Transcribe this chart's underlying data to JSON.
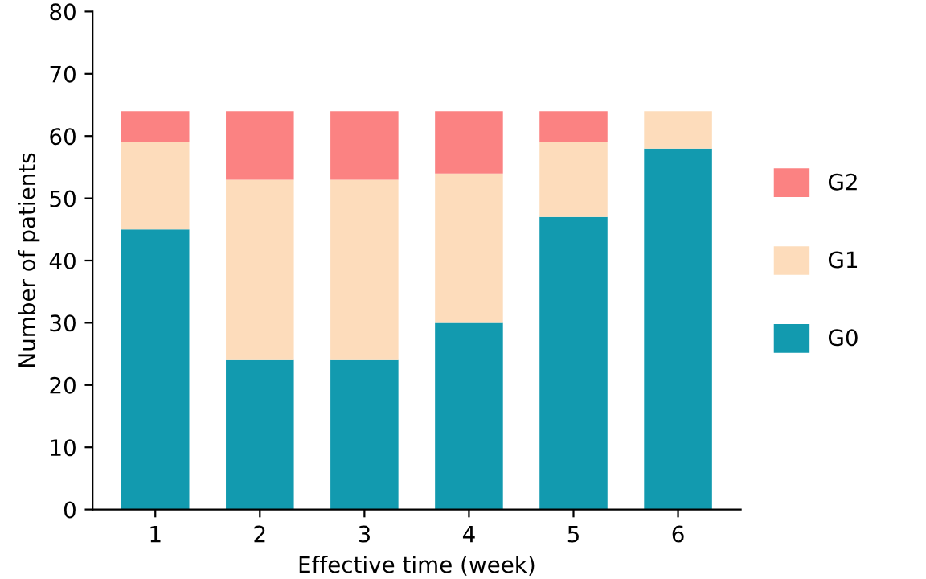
{
  "chart_data": {
    "type": "bar",
    "stacked": true,
    "xlabel": "Effective time (week)",
    "ylabel": "Number of patients",
    "categories": [
      "1",
      "2",
      "3",
      "4",
      "5",
      "6"
    ],
    "series": [
      {
        "name": "G0",
        "color": "#129aaf",
        "values": [
          45,
          24,
          24,
          30,
          47,
          58
        ]
      },
      {
        "name": "G1",
        "color": "#fddcbb",
        "values": [
          14,
          29,
          29,
          24,
          12,
          6
        ]
      },
      {
        "name": "G2",
        "color": "#fb8282",
        "values": [
          5,
          11,
          11,
          10,
          5,
          0
        ]
      }
    ],
    "ylim": [
      0,
      80
    ],
    "yticks": [
      0,
      10,
      20,
      30,
      40,
      50,
      60,
      70,
      80
    ],
    "grid": false,
    "legend": "right"
  }
}
